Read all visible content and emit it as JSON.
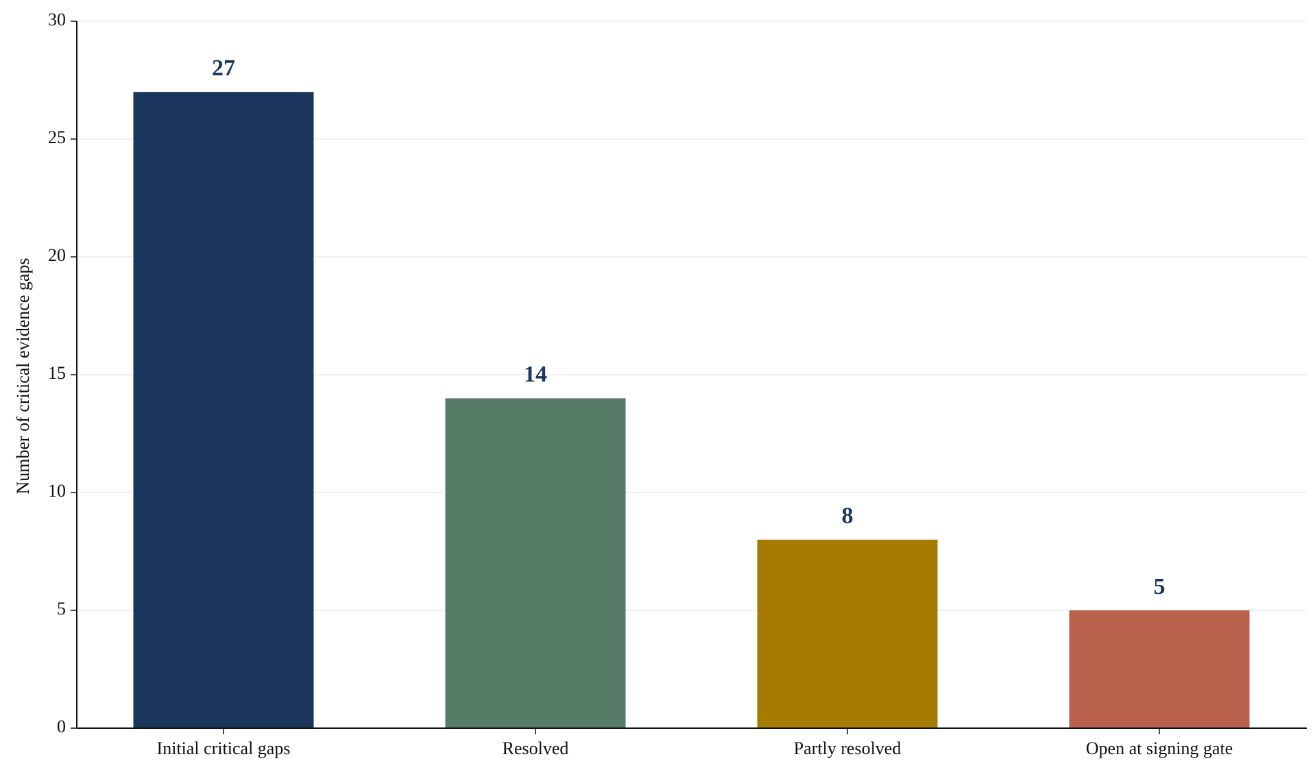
{
  "chart_data": {
    "type": "bar",
    "ylabel": "Number of critical evidence gaps",
    "categories": [
      "Initial critical gaps",
      "Resolved",
      "Partly resolved",
      "Open at signing gate"
    ],
    "values": [
      27,
      14,
      8,
      5
    ],
    "colors": [
      "#1a365d",
      "#557c67",
      "#a67c00",
      "#b8614d"
    ],
    "ylim": [
      0,
      30
    ],
    "yticks": [
      0,
      5,
      10,
      15,
      20,
      25,
      30
    ],
    "grid": true
  }
}
